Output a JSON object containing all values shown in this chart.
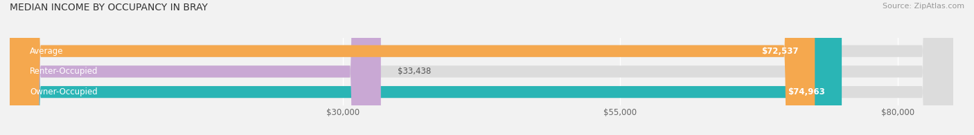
{
  "title": "MEDIAN INCOME BY OCCUPANCY IN BRAY",
  "source": "Source: ZipAtlas.com",
  "categories": [
    "Owner-Occupied",
    "Renter-Occupied",
    "Average"
  ],
  "values": [
    74963,
    33438,
    72537
  ],
  "bar_colors": [
    "#2ab5b5",
    "#c9a8d4",
    "#f5a84e"
  ],
  "bar_bg_color": "#dcdcdc",
  "value_labels": [
    "$74,963",
    "$33,438",
    "$72,537"
  ],
  "xlim_min": 0,
  "xlim_max": 85000,
  "xticks": [
    30000,
    55000,
    80000
  ],
  "xtick_labels": [
    "$30,000",
    "$55,000",
    "$80,000"
  ],
  "title_fontsize": 10,
  "source_fontsize": 8,
  "label_fontsize": 8.5,
  "bar_height": 0.58,
  "background_color": "#f2f2f2"
}
